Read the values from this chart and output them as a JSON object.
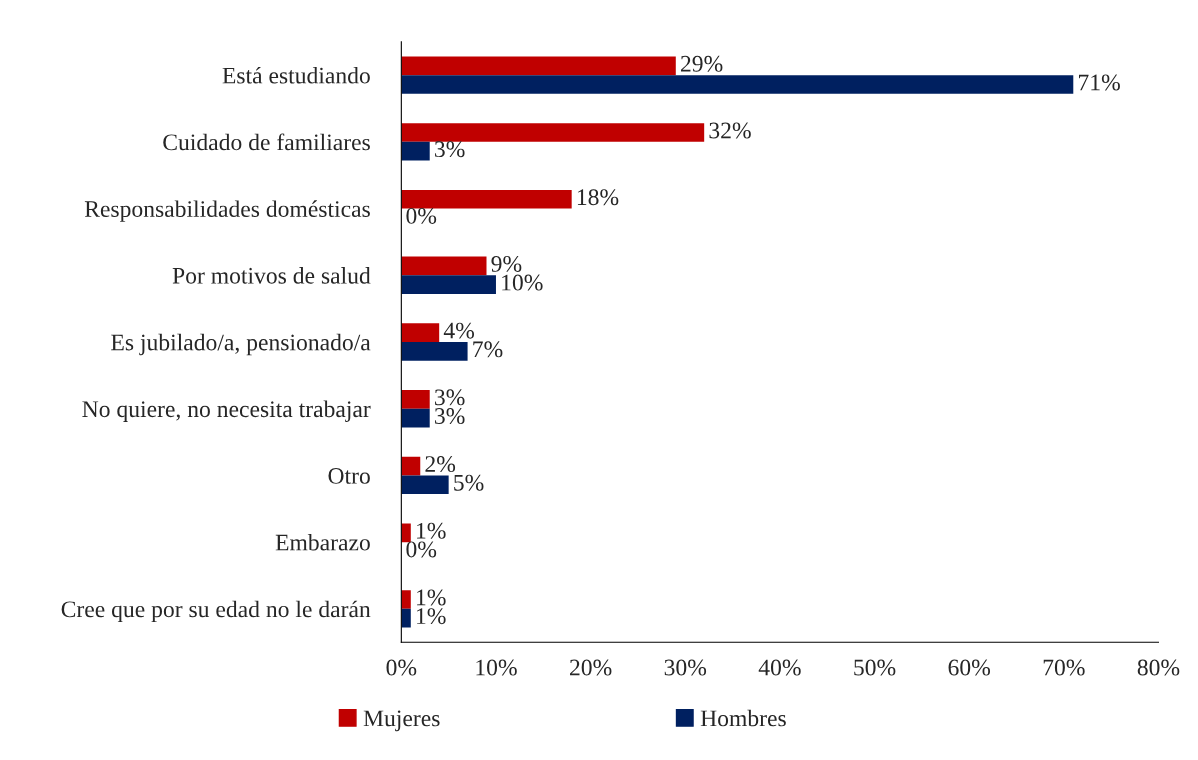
{
  "chart_data": {
    "type": "bar",
    "orientation": "horizontal",
    "categories": [
      "Está estudiando",
      "Cuidado de familiares",
      "Responsabilidades domésticas",
      "Por motivos de salud",
      "Es jubilado/a, pensionado/a",
      "No quiere, no necesita trabajar",
      "Otro",
      "Embarazo",
      "Cree que por su edad no le darán"
    ],
    "series": [
      {
        "name": "Mujeres",
        "color": "#c00000",
        "values": [
          29,
          32,
          18,
          9,
          4,
          3,
          2,
          1,
          1
        ],
        "value_labels": [
          "29%",
          "32%",
          "18%",
          "9%",
          "4%",
          "3%",
          "2%",
          "1%",
          "1%"
        ]
      },
      {
        "name": "Hombres",
        "color": "#002060",
        "values": [
          71,
          3,
          0,
          10,
          7,
          3,
          5,
          0,
          1
        ],
        "value_labels": [
          "71%",
          "3%",
          "0%",
          "10%",
          "7%",
          "3%",
          "5%",
          "0%",
          "1%"
        ]
      }
    ],
    "xlim": [
      0,
      80
    ],
    "xticks": [
      {
        "value": 0,
        "label": "0%"
      },
      {
        "value": 10,
        "label": "10%"
      },
      {
        "value": 20,
        "label": "20%"
      },
      {
        "value": 30,
        "label": "30%"
      },
      {
        "value": 40,
        "label": "40%"
      },
      {
        "value": 50,
        "label": "50%"
      },
      {
        "value": 60,
        "label": "60%"
      },
      {
        "value": 70,
        "label": "70%"
      },
      {
        "value": 80,
        "label": "80%"
      }
    ],
    "legend": "bottom",
    "grid": false
  }
}
